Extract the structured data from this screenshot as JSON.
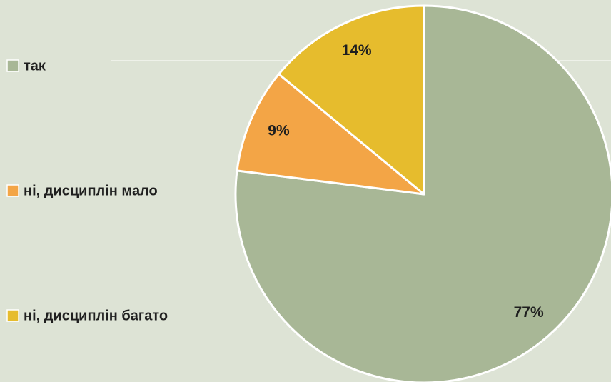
{
  "chart_data": {
    "type": "pie",
    "categories": [
      "так",
      "ні, дисциплін мало",
      "ні, дисциплін багато"
    ],
    "values": [
      77,
      9,
      14
    ],
    "value_labels": [
      "77%",
      "9%",
      "14%"
    ],
    "colors": [
      "#a8b796",
      "#f3a546",
      "#e6bc2d"
    ]
  }
}
